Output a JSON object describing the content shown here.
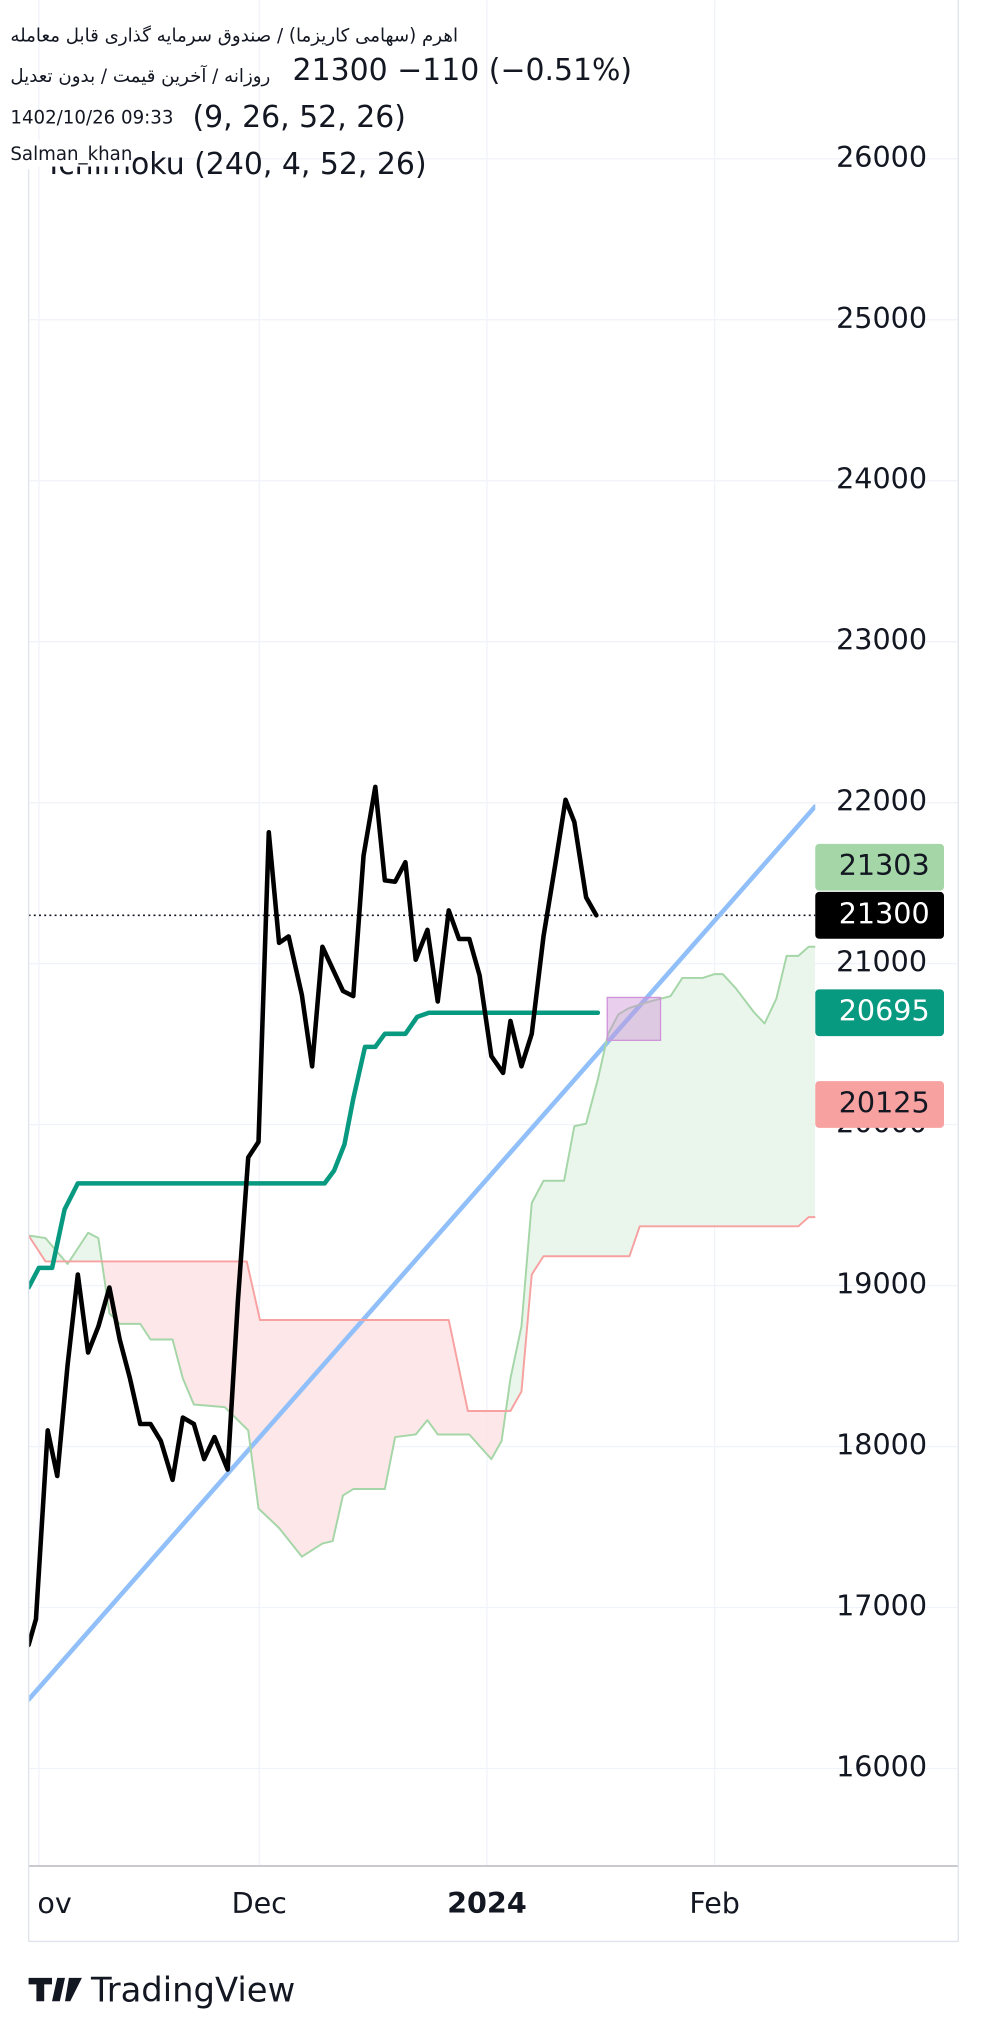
{
  "chart_data": {
    "type": "line",
    "header": {
      "symbol": "اهرم (سهامی کاریزما) / صندوق سرمایه گذاری قابل معامله",
      "settings": "روزانه / آخرین قیمت / بدون تعدیل",
      "quote": "21300  −110 (−0.51%)",
      "timestamp": "1402/10/26 09:33",
      "indicator_1": "(9, 26, 52, 26)",
      "author": "Salman_khan",
      "indicator_2": "Ichimoku (240, 4, 52, 26)"
    },
    "brand": "TradingView",
    "xlim": [
      -1.4,
      105.7
    ],
    "ylim": [
      15394,
      26824
    ],
    "xticks": [
      {
        "value": 0,
        "label": "ov"
      },
      {
        "value": 30,
        "label": "Dec"
      },
      {
        "value": 61,
        "label": "2024"
      },
      {
        "value": 92,
        "label": "Feb"
      }
    ],
    "yticks": [
      16000,
      17000,
      18000,
      19000,
      20000,
      21000,
      22000,
      23000,
      24000,
      25000,
      26000
    ],
    "grid": true,
    "series": [
      {
        "color": "#90bff9",
        "width": 3.5,
        "x": [
          -1.4,
          105.7
        ],
        "values": [
          16428,
          21977
        ]
      },
      {
        "color": "#a5d6a7",
        "width": 1.5,
        "fill": "#e8f5e9",
        "x": [
          -1.4,
          0.9,
          3.9,
          6.7,
          8.1,
          9.6,
          11.0,
          13.8,
          15.2,
          18.2,
          19.6,
          21.1,
          25.3,
          28.5,
          29.9,
          32.7,
          35.8,
          38.6,
          40.0,
          41.4,
          42.8,
          47.1,
          48.5,
          51.3,
          52.9,
          54.3,
          58.6,
          60.0,
          61.6,
          63.0,
          64.2,
          65.7,
          67.1,
          68.7,
          71.5,
          72.9,
          74.5,
          76.1,
          77.5,
          78.9,
          80.4,
          83.2,
          86.0,
          87.6,
          90.4,
          92.0,
          93.1,
          94.9,
          97.3,
          98.8,
          100.4,
          101.8,
          103.4,
          104.8,
          105.7
        ],
        "values": [
          19311,
          19295,
          19134,
          19328,
          19295,
          18827,
          18762,
          18762,
          18665,
          18665,
          18423,
          18261,
          18245,
          18100,
          17615,
          17494,
          17316,
          17397,
          17413,
          17696,
          17736,
          17736,
          18059,
          18075,
          18164,
          18075,
          18075,
          18003,
          17922,
          18035,
          18423,
          18746,
          19513,
          19651,
          19651,
          19990,
          20006,
          20281,
          20564,
          20685,
          20725,
          20765,
          20798,
          20911,
          20911,
          20935,
          20935,
          20846,
          20701,
          20628,
          20782,
          21048,
          21048,
          21105,
          21105
        ]
      },
      {
        "color": "#f7a1a1",
        "width": 1.5,
        "fill": "#fde4e6",
        "x": [
          -1.4,
          0.9,
          3.9,
          28.3,
          30.1,
          55.8,
          58.4,
          64.2,
          65.7,
          67.1,
          68.7,
          80.4,
          81.8,
          103.4,
          104.8,
          105.7
        ],
        "values": [
          19311,
          19150,
          19150,
          19150,
          18786,
          18786,
          18221,
          18221,
          18342,
          19069,
          19182,
          19182,
          19368,
          19368,
          19425,
          19425
        ]
      },
      {
        "color": "#089981",
        "width": 3.5,
        "x": [
          -1.4,
          0.0,
          1.8,
          3.5,
          5.3,
          38.9,
          40.2,
          41.6,
          42.8,
          44.4,
          45.8,
          47.1,
          49.9,
          51.5,
          53.1,
          76.1
        ],
        "values": [
          18988,
          19110,
          19110,
          19473,
          19635,
          19635,
          19715,
          19877,
          20160,
          20483,
          20483,
          20564,
          20564,
          20669,
          20695,
          20695
        ]
      },
      {
        "color": "#000000",
        "width": 3.5,
        "x": [
          -1.4,
          -0.4,
          1.2,
          2.5,
          3.9,
          5.3,
          6.7,
          8.1,
          9.6,
          11.0,
          12.4,
          13.8,
          15.2,
          16.6,
          18.2,
          19.6,
          21.1,
          22.5,
          23.9,
          25.7,
          27.1,
          28.5,
          29.9,
          31.3,
          32.7,
          34.0,
          35.8,
          37.2,
          38.6,
          40.0,
          41.4,
          42.8,
          44.2,
          45.8,
          47.1,
          48.5,
          49.9,
          51.3,
          52.9,
          54.3,
          55.8,
          57.2,
          58.6,
          60.0,
          61.6,
          63.2,
          64.2,
          65.7,
          67.1,
          68.7,
          70.3,
          71.7,
          72.9,
          74.5,
          75.9
        ],
        "values": [
          16767,
          16928,
          18100,
          17817,
          18504,
          19069,
          18584,
          18746,
          18988,
          18665,
          18423,
          18140,
          18140,
          18035,
          17793,
          18180,
          18140,
          17922,
          18059,
          17857,
          18908,
          19796,
          19893,
          21816,
          21129,
          21169,
          20806,
          20362,
          21105,
          20967,
          20830,
          20798,
          21670,
          22098,
          21517,
          21509,
          21630,
          21024,
          21210,
          20765,
          21331,
          21153,
          21153,
          20927,
          20426,
          20321,
          20644,
          20362,
          20564,
          21169,
          21614,
          22018,
          21880,
          21412,
          21300
        ]
      }
    ],
    "last_price": 21300,
    "price_labels": [
      {
        "value": 21300,
        "bg": "#000000",
        "fg": "#ffffff"
      },
      {
        "value": 21303,
        "bg": "#a5d6a7",
        "fg": "#131722"
      },
      {
        "value": 20695,
        "bg": "#089981",
        "fg": "#ffffff"
      },
      {
        "value": 20125,
        "bg": "#f7a1a1",
        "fg": "#131722"
      }
    ]
  }
}
